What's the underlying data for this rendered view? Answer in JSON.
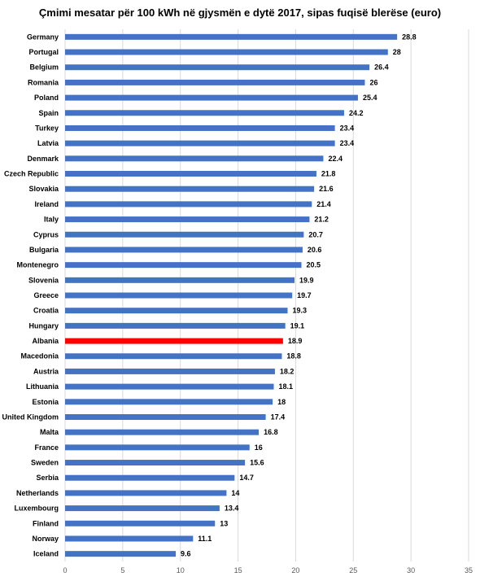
{
  "chart_data": {
    "type": "bar",
    "orientation": "horizontal",
    "title": "Çmimi mesatar për 100 kWh në gjysmën e dytë 2017, sipas fuqisë blerëse (euro)",
    "xlabel": "",
    "ylabel": "",
    "xlim": [
      0,
      35
    ],
    "x_ticks": [
      "0",
      "5",
      "10",
      "15",
      "20",
      "25",
      "30",
      "35"
    ],
    "grid": "vertical",
    "categories": [
      "Germany",
      "Portugal",
      "Belgium",
      "Romania",
      "Poland",
      "Spain",
      "Turkey",
      "Latvia",
      "Denmark",
      "Czech Republic",
      "Slovakia",
      "Ireland",
      "Italy",
      "Cyprus",
      "Bulgaria",
      "Montenegro",
      "Slovenia",
      "Greece",
      "Croatia",
      "Hungary",
      "Albania",
      "Macedonia",
      "Austria",
      "Lithuania",
      "Estonia",
      "United Kingdom",
      "Malta",
      "France",
      "Sweden",
      "Serbia",
      "Netherlands",
      "Luxembourg",
      "Finland",
      "Norway",
      "Iceland"
    ],
    "values": [
      28.8,
      28,
      26.4,
      26,
      25.4,
      24.2,
      23.4,
      23.4,
      22.4,
      21.8,
      21.6,
      21.4,
      21.2,
      20.7,
      20.6,
      20.5,
      19.9,
      19.7,
      19.3,
      19.1,
      18.9,
      18.8,
      18.2,
      18.1,
      18,
      17.4,
      16.8,
      16,
      15.6,
      14.7,
      14,
      13.4,
      13,
      11.1,
      9.6
    ],
    "value_labels": [
      "28.8",
      "28",
      "26.4",
      "26",
      "25.4",
      "24.2",
      "23.4",
      "23.4",
      "22.4",
      "21.8",
      "21.6",
      "21.4",
      "21.2",
      "20.7",
      "20.6",
      "20.5",
      "19.9",
      "19.7",
      "19.3",
      "19.1",
      "18.9",
      "18.8",
      "18.2",
      "18.1",
      "18",
      "17.4",
      "16.8",
      "16",
      "15.6",
      "14.7",
      "14",
      "13.4",
      "13",
      "11.1",
      "9.6"
    ],
    "bar_color": "#4472C4",
    "highlight_category": "Albania",
    "highlight_color": "#FF0000"
  }
}
